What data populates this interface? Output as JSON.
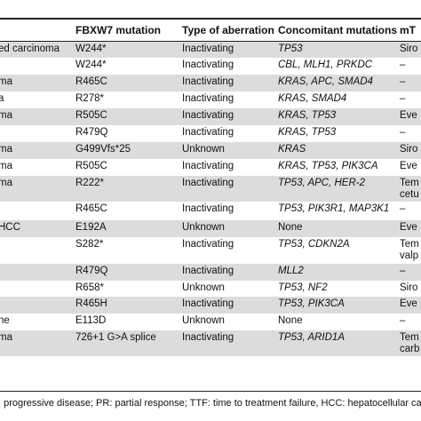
{
  "header": {
    "col1": "FBXW7 mutation",
    "col2": "Type of aberration",
    "col3": "Concomitant mutations",
    "col4": "mT"
  },
  "rows": [
    {
      "c0": "ed carcinoma",
      "c1": "W244*",
      "c2": "Inactivating",
      "c3": "TP53",
      "c3_italic": true,
      "c4": "Siro",
      "c4b": "",
      "h": 18
    },
    {
      "c0": "",
      "c1": "W244*",
      "c2": "Inactivating",
      "c3": "CBL, MLH1, PRKDC",
      "c3_italic": true,
      "c4": "–",
      "c4b": "",
      "h": 19
    },
    {
      "c0": "ma",
      "c1": "R465C",
      "c2": "Inactivating",
      "c3": "KRAS, APC, SMAD4",
      "c3_italic": true,
      "c4": "–",
      "c4b": "",
      "h": 19
    },
    {
      "c0": "a",
      "c1": "R278*",
      "c2": "Inactivating",
      "c3": "KRAS, SMAD4",
      "c3_italic": true,
      "c4": "–",
      "c4b": "",
      "h": 19
    },
    {
      "c0": "ma",
      "c1": "R505C",
      "c2": "Inactivating",
      "c3": "KRAS, TP53",
      "c3_italic": true,
      "c4": "Eve",
      "c4b": "",
      "h": 19
    },
    {
      "c0": "",
      "c1": "R479Q",
      "c2": "Inactivating",
      "c3": "KRAS, TP53",
      "c3_italic": true,
      "c4": "–",
      "c4b": "",
      "h": 19
    },
    {
      "c0": "ma",
      "c1": "G499Vfs*25",
      "c2": "Unknown",
      "c3": "KRAS",
      "c3_italic": true,
      "c4": "Siro",
      "c4b": "",
      "h": 19
    },
    {
      "c0": "ma",
      "c1": "R505C",
      "c2": "Inactivating",
      "c3": "KRAS, TP53, PIK3CA",
      "c3_italic": true,
      "c4": "Eve",
      "c4b": "",
      "h": 19
    },
    {
      "c0": "ma",
      "c1": "R222*",
      "c2": "Inactivating",
      "c3": "TP53, APC, HER-2",
      "c3_italic": true,
      "c4": "Tem",
      "c4b": "cetu",
      "h": 29
    },
    {
      "c0": "",
      "c1": "R465C",
      "c2": "Inactivating",
      "c3": "TP53, PIK3R1, MAP3K1",
      "c3_italic": true,
      "c4": "–",
      "c4b": "",
      "h": 21
    },
    {
      "c0": "HCC",
      "c1": "E192A",
      "c2": "Unknown",
      "c3": "None",
      "c3_italic": false,
      "c4": "Eve",
      "c4b": "",
      "h": 19
    },
    {
      "c0": "",
      "c1": "S282*",
      "c2": "Inactivating",
      "c3": "TP53, CDKN2A",
      "c3_italic": true,
      "c4": "Tem",
      "c4b": "valp",
      "h": 30
    },
    {
      "c0": "",
      "c1": "R479Q",
      "c2": "Inactivating",
      "c3": "MLL2",
      "c3_italic": true,
      "c4": "–",
      "c4b": "",
      "h": 19
    },
    {
      "c0": "",
      "c1": "R658*",
      "c2": "Unknown",
      "c3": "TP53, NF2",
      "c3_italic": true,
      "c4": "Siro",
      "c4b": "",
      "h": 18
    },
    {
      "c0": "",
      "c1": "R465H",
      "c2": "Inactivating",
      "c3": "TP53, PIK3CA",
      "c3_italic": true,
      "c4": "Eve",
      "c4b": "",
      "h": 19
    },
    {
      "c0": "ne",
      "c1": "E113D",
      "c2": "Unknown",
      "c3": "None",
      "c3_italic": false,
      "c4": "–",
      "c4b": "",
      "h": 19
    },
    {
      "c0": "ma",
      "c1": "726+1 G>A splice",
      "c2": "Inactivating",
      "c3": "TP53, ARID1A",
      "c3_italic": true,
      "c4": "Tem",
      "c4b": "carb",
      "h": 29
    }
  ],
  "footer": ": progressive disease; PR: partial response; TTF: time to treatment failure, HCC: hepatocellular carc"
}
